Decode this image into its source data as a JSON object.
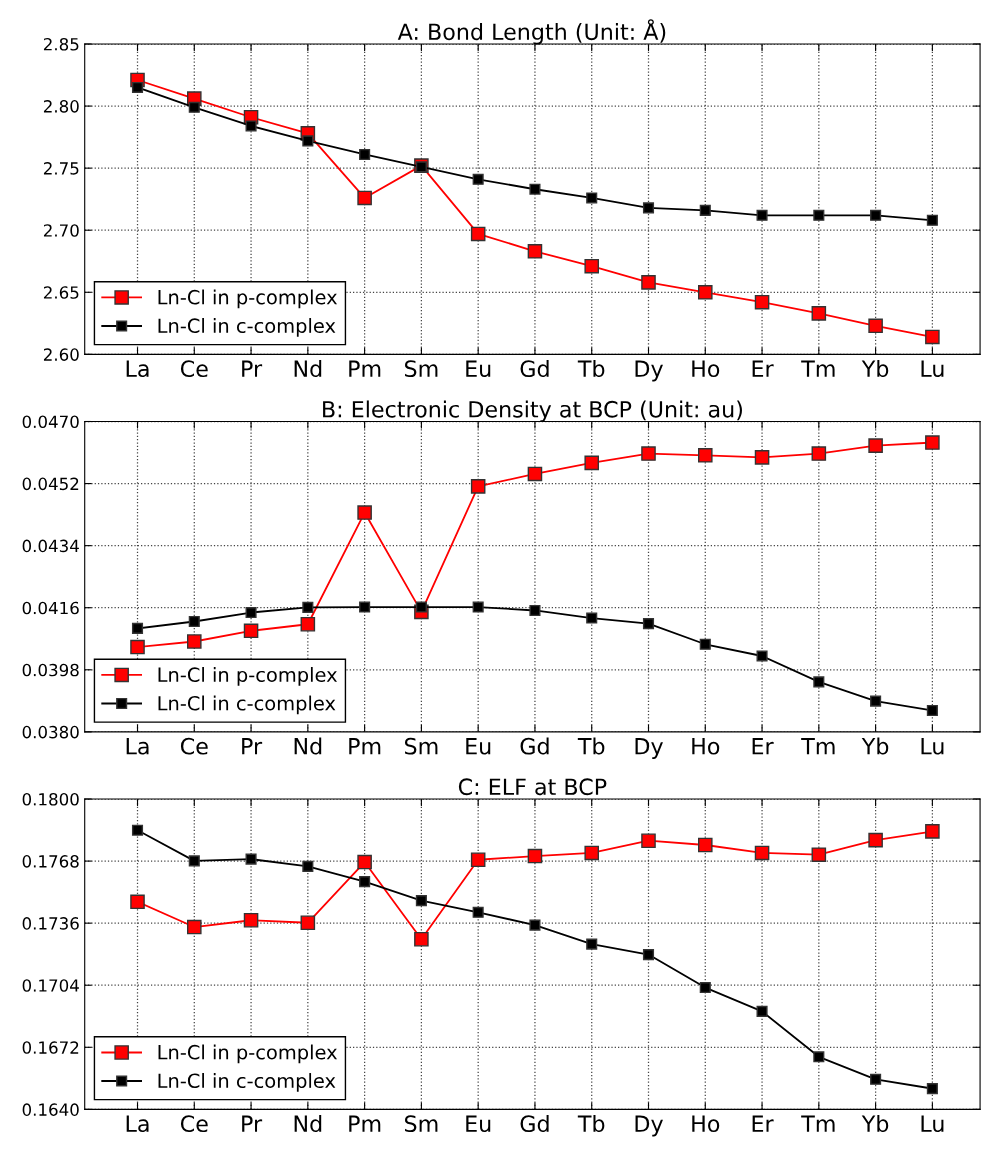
{
  "chart_data": [
    {
      "type": "line",
      "title": "A: Bond Length (Unit: Å)",
      "categories": [
        "La",
        "Ce",
        "Pr",
        "Nd",
        "Pm",
        "Sm",
        "Eu",
        "Gd",
        "Tb",
        "Dy",
        "Ho",
        "Er",
        "Tm",
        "Yb",
        "Lu"
      ],
      "series": [
        {
          "name": "Ln-Cl in p-complex",
          "color": "#ff0000",
          "values": [
            2.821,
            2.806,
            2.791,
            2.778,
            2.726,
            2.752,
            2.697,
            2.683,
            2.671,
            2.658,
            2.65,
            2.642,
            2.633,
            2.623,
            2.614
          ]
        },
        {
          "name": "Ln-Cl in c-complex",
          "color": "#000000",
          "values": [
            2.815,
            2.799,
            2.784,
            2.772,
            2.761,
            2.751,
            2.741,
            2.733,
            2.726,
            2.718,
            2.716,
            2.712,
            2.712,
            2.712,
            2.708
          ]
        }
      ],
      "ylim": [
        2.6,
        2.85
      ],
      "yticks": [
        {
          "value": 2.6,
          "label": "2.60"
        },
        {
          "value": 2.65,
          "label": "2.65"
        },
        {
          "value": 2.7,
          "label": "2.70"
        },
        {
          "value": 2.75,
          "label": "2.75"
        },
        {
          "value": 2.8,
          "label": "2.80"
        },
        {
          "value": 2.85,
          "label": "2.85"
        }
      ],
      "grid": true,
      "legend": "bottom left",
      "marker": "square",
      "line_style": "solid"
    },
    {
      "type": "line",
      "title": "B: Electronic Density at BCP (Unit: au)",
      "categories": [
        "La",
        "Ce",
        "Pr",
        "Nd",
        "Pm",
        "Sm",
        "Eu",
        "Gd",
        "Tb",
        "Dy",
        "Ho",
        "Er",
        "Tm",
        "Yb",
        "Lu"
      ],
      "series": [
        {
          "name": "Ln-Cl in p-complex",
          "color": "#ff0000",
          "values": [
            0.04046,
            0.04062,
            0.04093,
            0.04112,
            0.04436,
            0.04148,
            0.04512,
            0.04548,
            0.0458,
            0.04607,
            0.04602,
            0.04596,
            0.04607,
            0.0463,
            0.04639
          ]
        },
        {
          "name": "Ln-Cl in c-complex",
          "color": "#000000",
          "values": [
            0.041,
            0.0412,
            0.04146,
            0.04161,
            0.04162,
            0.04162,
            0.04162,
            0.04152,
            0.0413,
            0.04114,
            0.04054,
            0.0402,
            0.03945,
            0.03889,
            0.03862
          ]
        }
      ],
      "ylim": [
        0.038,
        0.047
      ],
      "yticks": [
        {
          "value": 0.038,
          "label": "0.0380"
        },
        {
          "value": 0.0398,
          "label": "0.0398"
        },
        {
          "value": 0.0416,
          "label": "0.0416"
        },
        {
          "value": 0.0434,
          "label": "0.0434"
        },
        {
          "value": 0.0452,
          "label": "0.0452"
        },
        {
          "value": 0.047,
          "label": "0.0470"
        }
      ],
      "grid": true,
      "legend": "bottom left",
      "marker": "square",
      "line_style": "solid"
    },
    {
      "type": "line",
      "title": "C: ELF at BCP",
      "categories": [
        "La",
        "Ce",
        "Pr",
        "Nd",
        "Pm",
        "Sm",
        "Eu",
        "Gd",
        "Tb",
        "Dy",
        "Ho",
        "Er",
        "Tm",
        "Yb",
        "Lu"
      ],
      "series": [
        {
          "name": "Ln-Cl in p-complex",
          "color": "#ff0000",
          "values": [
            0.1747,
            0.1734,
            0.17375,
            0.17362,
            0.17675,
            0.17277,
            0.17687,
            0.17706,
            0.17722,
            0.17785,
            0.17763,
            0.17722,
            0.17713,
            0.17788,
            0.17833
          ]
        },
        {
          "name": "Ln-Cl in c-complex",
          "color": "#000000",
          "values": [
            0.17839,
            0.17681,
            0.1769,
            0.17653,
            0.17574,
            0.17476,
            0.17416,
            0.1735,
            0.17252,
            0.17198,
            0.17028,
            0.16905,
            0.16671,
            0.16555,
            0.16507
          ]
        }
      ],
      "ylim": [
        0.164,
        0.18
      ],
      "yticks": [
        {
          "value": 0.164,
          "label": "0.1640"
        },
        {
          "value": 0.1672,
          "label": "0.1672"
        },
        {
          "value": 0.1704,
          "label": "0.1704"
        },
        {
          "value": 0.1736,
          "label": "0.1736"
        },
        {
          "value": 0.1768,
          "label": "0.1768"
        },
        {
          "value": 0.18,
          "label": "0.1800"
        }
      ],
      "grid": true,
      "legend": "bottom left",
      "marker": "square",
      "line_style": "solid"
    }
  ]
}
